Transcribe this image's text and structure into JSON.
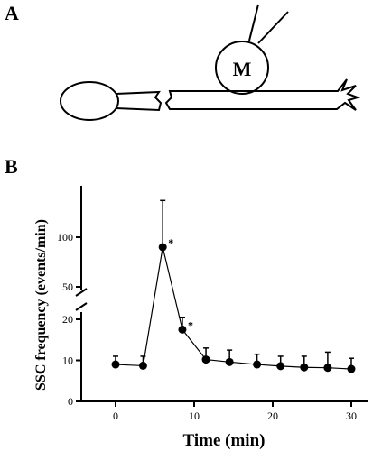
{
  "figure": {
    "panel_a_label": "A",
    "panel_b_label": "B",
    "neuron_label": "M"
  },
  "chart_data": {
    "type": "line",
    "xlabel": "Time (min)",
    "ylabel": "SSC frequency (events/min)",
    "xlim": [
      -5,
      32
    ],
    "y_axis_break": {
      "lower_range": [
        0,
        25
      ],
      "upper_range": [
        50,
        140
      ]
    },
    "xticks": [
      0,
      10,
      20,
      30
    ],
    "yticks": [
      0,
      10,
      20,
      50,
      100
    ],
    "series": [
      {
        "x": [
          0,
          3.5,
          6,
          8.5,
          11.5,
          14.5,
          18,
          21,
          24,
          27,
          30
        ],
        "y": [
          9,
          8.7,
          90,
          17.5,
          10.2,
          9.6,
          9.0,
          8.6,
          8.3,
          8.2,
          7.9
        ],
        "error_upper": [
          11,
          11,
          137,
          20.5,
          13,
          12.5,
          11.5,
          11,
          11,
          12,
          10.5
        ],
        "significant": [
          false,
          false,
          true,
          true,
          false,
          false,
          false,
          false,
          false,
          false,
          false
        ]
      }
    ],
    "significance_marker": "*",
    "grid": false
  }
}
